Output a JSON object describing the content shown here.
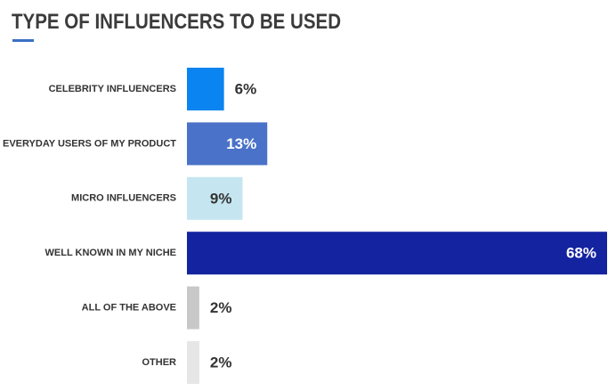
{
  "chart_data": {
    "type": "bar",
    "orientation": "horizontal",
    "title": "TYPE OF INFLUENCERS TO BE USED",
    "categories": [
      "CELEBRITY INFLUENCERS",
      "EVERYDAY USERS OF MY PRODUCT",
      "MICRO INFLUENCERS",
      "WELL KNOWN IN MY NICHE",
      "ALL OF THE ABOVE",
      "OTHER"
    ],
    "values": [
      6,
      13,
      9,
      68,
      2,
      2
    ],
    "value_labels": [
      "6%",
      "13%",
      "9%",
      "68%",
      "2%",
      "2%"
    ],
    "colors": [
      "#0a84f0",
      "#4a72c8",
      "#c5e6f0",
      "#1423a0",
      "#c8c8c8",
      "#e6e6e6"
    ]
  }
}
